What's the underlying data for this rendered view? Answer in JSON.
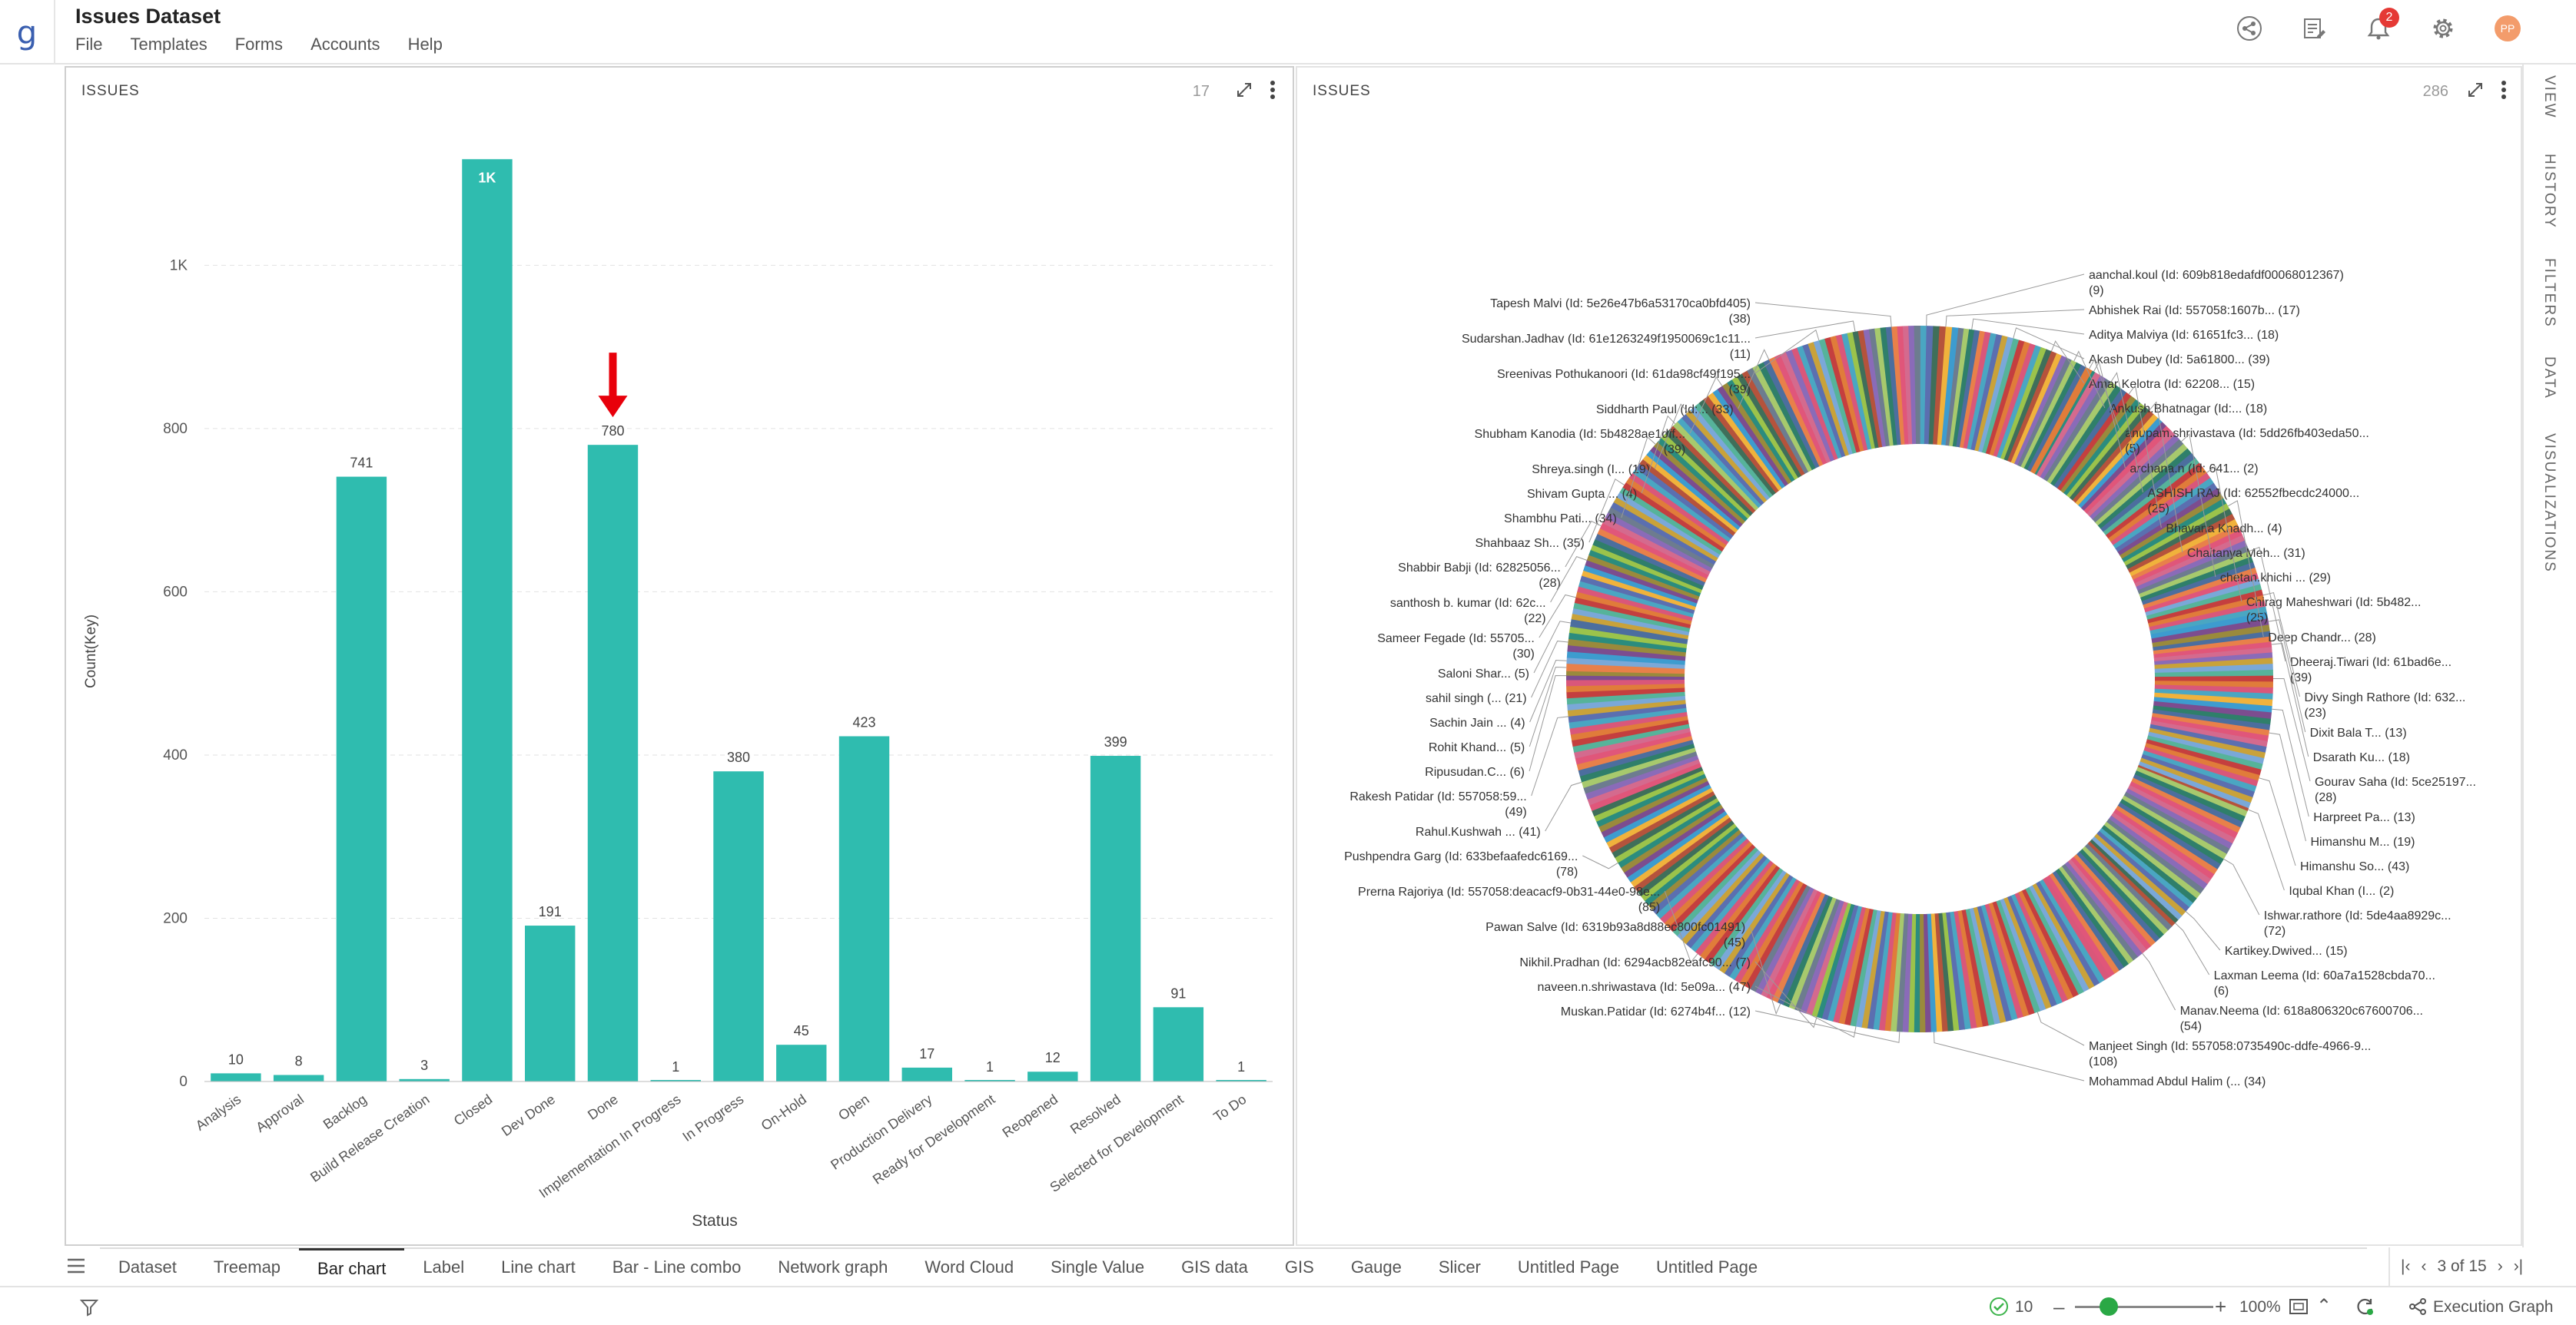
{
  "app": {
    "title": "Issues Dataset",
    "logo": "g"
  },
  "menu": [
    "File",
    "Templates",
    "Forms",
    "Accounts",
    "Help"
  ],
  "notifications": {
    "count": "2"
  },
  "user": {
    "initials": "PP"
  },
  "left_panel": {
    "title": "ISSUES",
    "count": "17"
  },
  "right_panel": {
    "title": "ISSUES",
    "count": "286"
  },
  "rail": [
    "VIEW",
    "HISTORY",
    "FILTERS",
    "DATA",
    "VISUALIZATIONS"
  ],
  "tabs": [
    "Dataset",
    "Treemap",
    "Bar chart",
    "Label",
    "Line chart",
    "Bar - Line combo",
    "Network graph",
    "Word Cloud",
    "Single Value",
    "GIS data",
    "GIS",
    "Gauge",
    "Slicer",
    "Untitled Page",
    "Untitled Page"
  ],
  "active_tab": "Bar chart",
  "pager": {
    "text": "3 of 15"
  },
  "status": {
    "checks": "10",
    "zoom": "100%",
    "execution": "Execution Graph"
  },
  "colors": {
    "bar": "#2fbcaf",
    "accent": "#3a5fb0",
    "arrow": "#e8000b"
  },
  "chart_data": [
    {
      "type": "bar",
      "xlabel": "Status",
      "ylabel": "Count(Key)",
      "ylim": [
        0,
        1150
      ],
      "yticks": [
        "0",
        "200",
        "400",
        "600",
        "800",
        "1K"
      ],
      "categories": [
        "Analysis",
        "Approval",
        "Backlog",
        "Build Release Creation",
        "Closed",
        "Dev Done",
        "Done",
        "Implementation In Progress",
        "In Progress",
        "On-Hold",
        "Open",
        "Production Delivery",
        "Ready for Development",
        "Reopened",
        "Resolved",
        "Selected for Development",
        "To Do"
      ],
      "values": [
        10,
        8,
        741,
        3,
        1130,
        191,
        780,
        1,
        380,
        45,
        423,
        17,
        1,
        12,
        399,
        91,
        1
      ],
      "labels": [
        "10",
        "8",
        "741",
        "3",
        "1K",
        "191",
        "780",
        "1",
        "380",
        "45",
        "423",
        "17",
        "1",
        "12",
        "399",
        "91",
        "1"
      ],
      "grid": true,
      "highlight": "Done"
    },
    {
      "type": "pie",
      "donut": true,
      "labels": [
        {
          "lines": [
            "aanchal.koul (Id: 609b818edafdf00068012367)",
            "(9)"
          ],
          "value": 9
        },
        {
          "lines": [
            "Abhishek Rai (Id: 557058:1607b... (17)"
          ],
          "value": 17
        },
        {
          "lines": [
            "Aditya Malviya (Id: 61651fc3... (18)"
          ],
          "value": 18
        },
        {
          "lines": [
            "Akash Dubey (Id: 5a61800... (39)"
          ],
          "value": 39
        },
        {
          "lines": [
            "Amar Kelotra (Id: 62208... (15)"
          ],
          "value": 15
        },
        {
          "lines": [
            "Ankush.Bhatnagar (Id:... (18)"
          ],
          "value": 18
        },
        {
          "lines": [
            "anupam.shrivastava (Id: 5dd26fb403eda50...",
            "(5)"
          ],
          "value": 5
        },
        {
          "lines": [
            "archana.n (Id: 641... (2)"
          ],
          "value": 2
        },
        {
          "lines": [
            "ASHISH RAJ (Id: 62552fbecdc24000...",
            "(25)"
          ],
          "value": 25
        },
        {
          "lines": [
            "Bhavana Knadh... (4)"
          ],
          "value": 4
        },
        {
          "lines": [
            "Chaitanya Meh... (31)"
          ],
          "value": 31
        },
        {
          "lines": [
            "chetan.khichi ... (29)"
          ],
          "value": 29
        },
        {
          "lines": [
            "Chirag Maheshwari (Id: 5b482...",
            "(25)"
          ],
          "value": 25
        },
        {
          "lines": [
            "Deep Chandr... (28)"
          ],
          "value": 28
        },
        {
          "lines": [
            "Dheeraj.Tiwari (Id: 61bad6e...",
            "(39)"
          ],
          "value": 39
        },
        {
          "lines": [
            "Divy Singh Rathore (Id: 632...",
            "(23)"
          ],
          "value": 23
        },
        {
          "lines": [
            "Dixit Bala T... (13)"
          ],
          "value": 13
        },
        {
          "lines": [
            "Dsarath Ku... (18)"
          ],
          "value": 18
        },
        {
          "lines": [
            "Gourav Saha (Id: 5ce25197...",
            "(28)"
          ],
          "value": 28
        },
        {
          "lines": [
            "Harpreet Pa... (13)"
          ],
          "value": 13
        },
        {
          "lines": [
            "Himanshu M... (19)"
          ],
          "value": 19
        },
        {
          "lines": [
            "Himanshu So... (43)"
          ],
          "value": 43
        },
        {
          "lines": [
            "Iqubal Khan (I... (2)"
          ],
          "value": 2
        },
        {
          "lines": [
            "Ishwar.rathore (Id: 5de4aa8929c...",
            "(72)"
          ],
          "value": 72
        },
        {
          "lines": [
            "Kartikey.Dwived... (15)"
          ],
          "value": 15
        },
        {
          "lines": [
            "Laxman Leema (Id: 60a7a1528cbda70...",
            "(6)"
          ],
          "value": 6
        },
        {
          "lines": [
            "Manav.Neema (Id: 618a806320c67600706...",
            "(54)"
          ],
          "value": 54
        },
        {
          "lines": [
            "Manjeet Singh (Id: 557058:0735490c-ddfe-4966-9...",
            "(108)"
          ],
          "value": 108
        },
        {
          "lines": [
            "Mohammad Abdul Halim (... (34)"
          ],
          "value": 34
        },
        {
          "lines": [
            "Muskan.Patidar (Id: 6274b4f... (12)"
          ],
          "value": 12
        },
        {
          "lines": [
            "naveen.n.shriwastava (Id: 5e09a... (47)"
          ],
          "value": 47
        },
        {
          "lines": [
            "Nikhil.Pradhan (Id: 6294acb82eafc90... (7)"
          ],
          "value": 7
        },
        {
          "lines": [
            "Pawan Salve (Id: 6319b93a8d88ec800fc01491)",
            "(45)"
          ],
          "value": 45
        },
        {
          "lines": [
            "Prerna Rajoriya (Id: 557058:deacacf9-0b31-44e0-98e...",
            "(85)"
          ],
          "value": 85
        },
        {
          "lines": [
            "Pushpendra Garg (Id: 633befaafedc6169...",
            "(78)"
          ],
          "value": 78
        },
        {
          "lines": [
            "Rahul.Kushwah ... (41)"
          ],
          "value": 41
        },
        {
          "lines": [
            "Rakesh Patidar (Id: 557058:59...",
            "(49)"
          ],
          "value": 49
        },
        {
          "lines": [
            "Ripusudan.C... (6)"
          ],
          "value": 6
        },
        {
          "lines": [
            "Rohit Khand... (5)"
          ],
          "value": 5
        },
        {
          "lines": [
            "Sachin Jain ... (4)"
          ],
          "value": 4
        },
        {
          "lines": [
            "sahil singh (... (21)"
          ],
          "value": 21
        },
        {
          "lines": [
            "Saloni Shar... (5)"
          ],
          "value": 5
        },
        {
          "lines": [
            "Sameer Fegade (Id: 55705...",
            "(30)"
          ],
          "value": 30
        },
        {
          "lines": [
            "santhosh b. kumar (Id: 62c...",
            "(22)"
          ],
          "value": 22
        },
        {
          "lines": [
            "Shabbir Babji (Id: 62825056...",
            "(28)"
          ],
          "value": 28
        },
        {
          "lines": [
            "Shahbaaz Sh... (35)"
          ],
          "value": 35
        },
        {
          "lines": [
            "Shambhu Pati... (34)"
          ],
          "value": 34
        },
        {
          "lines": [
            "Shivam Gupta ... (4)"
          ],
          "value": 4
        },
        {
          "lines": [
            "Shreya.singh (I... (19)"
          ],
          "value": 19
        },
        {
          "lines": [
            "Shubham Kanodia (Id: 5b4828ae1dff...",
            "(39)"
          ],
          "value": 39
        },
        {
          "lines": [
            "Siddharth Paul (Id:... (33)"
          ],
          "value": 33
        },
        {
          "lines": [
            "Sreenivas Pothukanoori (Id: 61da98cf49f195...",
            "(39)"
          ],
          "value": 39
        },
        {
          "lines": [
            "Sudarshan.Jadhav (Id: 61e1263249f1950069c1c11...",
            "(11)"
          ],
          "value": 11
        },
        {
          "lines": [
            "Tapesh Malvi (Id: 5e26e47b6a53170ca0bfd405)",
            "(38)"
          ],
          "value": 38
        }
      ]
    }
  ]
}
